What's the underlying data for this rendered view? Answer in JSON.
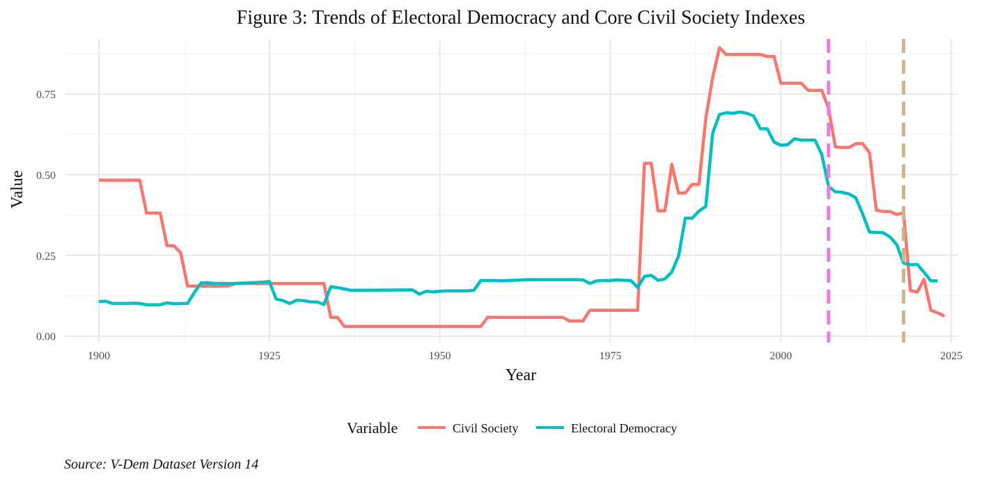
{
  "chart_data": {
    "type": "line",
    "title": "Figure 3: Trends of Electoral Democracy and Core Civil Society Indexes",
    "xlabel": "Year",
    "ylabel": "Value",
    "xlim": [
      1895,
      2026
    ],
    "ylim": [
      -0.02,
      0.92
    ],
    "xticks": [
      1900,
      1925,
      1950,
      1975,
      2000,
      2025
    ],
    "yticks": [
      0.0,
      0.25,
      0.5,
      0.75
    ],
    "ytick_labels": [
      "0.00",
      "0.25",
      "0.50",
      "0.75"
    ],
    "grid": true,
    "legend": {
      "title": "Variable",
      "position": "bottom"
    },
    "reference_lines": [
      {
        "x": 2007,
        "color": "#E87AE8",
        "style": "dashed"
      },
      {
        "x": 2018,
        "color": "#D2B48C",
        "style": "dashed"
      }
    ],
    "series": [
      {
        "name": "Civil Society",
        "color": "#F8766D",
        "points": [
          [
            1900,
            0.483
          ],
          [
            1906,
            0.483
          ],
          [
            1907,
            0.381
          ],
          [
            1909,
            0.381
          ],
          [
            1910,
            0.28
          ],
          [
            1911,
            0.28
          ],
          [
            1912,
            0.258
          ],
          [
            1913,
            0.155
          ],
          [
            1919,
            0.155
          ],
          [
            1920,
            0.163
          ],
          [
            1933,
            0.163
          ],
          [
            1934,
            0.058
          ],
          [
            1935,
            0.058
          ],
          [
            1936,
            0.03
          ],
          [
            1956,
            0.03
          ],
          [
            1957,
            0.058
          ],
          [
            1968,
            0.058
          ],
          [
            1969,
            0.047
          ],
          [
            1971,
            0.047
          ],
          [
            1972,
            0.08
          ],
          [
            1979,
            0.08
          ],
          [
            1980,
            0.535
          ],
          [
            1981,
            0.535
          ],
          [
            1982,
            0.388
          ],
          [
            1983,
            0.388
          ],
          [
            1984,
            0.532
          ],
          [
            1985,
            0.443
          ],
          [
            1986,
            0.443
          ],
          [
            1987,
            0.47
          ],
          [
            1988,
            0.47
          ],
          [
            1989,
            0.675
          ],
          [
            1990,
            0.8
          ],
          [
            1991,
            0.893
          ],
          [
            1992,
            0.872
          ],
          [
            1997,
            0.872
          ],
          [
            1998,
            0.866
          ],
          [
            1999,
            0.866
          ],
          [
            2000,
            0.783
          ],
          [
            2003,
            0.783
          ],
          [
            2004,
            0.761
          ],
          [
            2006,
            0.761
          ],
          [
            2007,
            0.705
          ],
          [
            2008,
            0.586
          ],
          [
            2009,
            0.584
          ],
          [
            2010,
            0.584
          ],
          [
            2011,
            0.596
          ],
          [
            2012,
            0.596
          ],
          [
            2013,
            0.568
          ],
          [
            2014,
            0.39
          ],
          [
            2015,
            0.386
          ],
          [
            2016,
            0.386
          ],
          [
            2017,
            0.377
          ],
          [
            2018,
            0.382
          ],
          [
            2019,
            0.141
          ],
          [
            2020,
            0.136
          ],
          [
            2021,
            0.176
          ],
          [
            2022,
            0.08
          ],
          [
            2023,
            0.072
          ],
          [
            2024,
            0.062
          ]
        ]
      },
      {
        "name": "Electoral Democracy",
        "color": "#00BFC4",
        "points": [
          [
            1900,
            0.107
          ],
          [
            1901,
            0.108
          ],
          [
            1902,
            0.101
          ],
          [
            1903,
            0.101
          ],
          [
            1904,
            0.101
          ],
          [
            1905,
            0.102
          ],
          [
            1906,
            0.101
          ],
          [
            1907,
            0.097
          ],
          [
            1908,
            0.097
          ],
          [
            1909,
            0.097
          ],
          [
            1910,
            0.103
          ],
          [
            1911,
            0.1
          ],
          [
            1912,
            0.101
          ],
          [
            1913,
            0.101
          ],
          [
            1914,
            0.135
          ],
          [
            1915,
            0.165
          ],
          [
            1916,
            0.165
          ],
          [
            1917,
            0.163
          ],
          [
            1920,
            0.163
          ],
          [
            1922,
            0.165
          ],
          [
            1924,
            0.167
          ],
          [
            1925,
            0.169
          ],
          [
            1926,
            0.115
          ],
          [
            1927,
            0.11
          ],
          [
            1928,
            0.101
          ],
          [
            1929,
            0.111
          ],
          [
            1930,
            0.11
          ],
          [
            1931,
            0.106
          ],
          [
            1932,
            0.106
          ],
          [
            1933,
            0.098
          ],
          [
            1934,
            0.153
          ],
          [
            1935,
            0.15
          ],
          [
            1936,
            0.146
          ],
          [
            1937,
            0.142
          ],
          [
            1946,
            0.143
          ],
          [
            1947,
            0.13
          ],
          [
            1948,
            0.139
          ],
          [
            1949,
            0.137
          ],
          [
            1950,
            0.139
          ],
          [
            1951,
            0.14
          ],
          [
            1954,
            0.14
          ],
          [
            1955,
            0.142
          ],
          [
            1956,
            0.172
          ],
          [
            1958,
            0.172
          ],
          [
            1959,
            0.171
          ],
          [
            1960,
            0.172
          ],
          [
            1963,
            0.175
          ],
          [
            1967,
            0.175
          ],
          [
            1968,
            0.175
          ],
          [
            1970,
            0.175
          ],
          [
            1971,
            0.174
          ],
          [
            1972,
            0.163
          ],
          [
            1973,
            0.171
          ],
          [
            1974,
            0.172
          ],
          [
            1975,
            0.172
          ],
          [
            1976,
            0.174
          ],
          [
            1977,
            0.173
          ],
          [
            1978,
            0.172
          ],
          [
            1979,
            0.151
          ],
          [
            1980,
            0.185
          ],
          [
            1981,
            0.188
          ],
          [
            1982,
            0.173
          ],
          [
            1983,
            0.177
          ],
          [
            1984,
            0.198
          ],
          [
            1985,
            0.248
          ],
          [
            1986,
            0.365
          ],
          [
            1987,
            0.365
          ],
          [
            1988,
            0.387
          ],
          [
            1989,
            0.402
          ],
          [
            1990,
            0.628
          ],
          [
            1991,
            0.686
          ],
          [
            1992,
            0.692
          ],
          [
            1993,
            0.69
          ],
          [
            1994,
            0.694
          ],
          [
            1995,
            0.69
          ],
          [
            1996,
            0.682
          ],
          [
            1997,
            0.642
          ],
          [
            1998,
            0.642
          ],
          [
            1999,
            0.601
          ],
          [
            2000,
            0.591
          ],
          [
            2001,
            0.593
          ],
          [
            2002,
            0.611
          ],
          [
            2003,
            0.607
          ],
          [
            2005,
            0.607
          ],
          [
            2006,
            0.563
          ],
          [
            2007,
            0.463
          ],
          [
            2008,
            0.447
          ],
          [
            2009,
            0.445
          ],
          [
            2010,
            0.44
          ],
          [
            2011,
            0.428
          ],
          [
            2012,
            0.378
          ],
          [
            2013,
            0.322
          ],
          [
            2015,
            0.32
          ],
          [
            2016,
            0.307
          ],
          [
            2017,
            0.283
          ],
          [
            2018,
            0.226
          ],
          [
            2019,
            0.221
          ],
          [
            2020,
            0.222
          ],
          [
            2021,
            0.198
          ],
          [
            2022,
            0.171
          ],
          [
            2023,
            0.171
          ]
        ]
      }
    ],
    "caption": "Source: V-Dem Dataset Version 14"
  }
}
